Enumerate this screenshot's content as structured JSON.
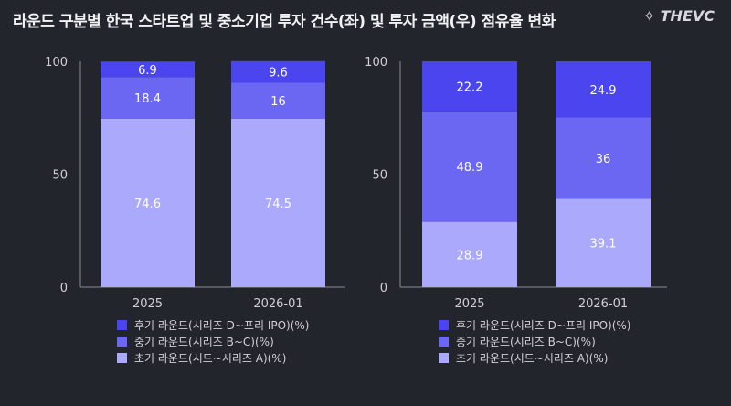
{
  "title": "라운드 구분별 한국 스타트업 및 중소기업 투자 건수(좌) 및 투자 금액(우) 점유율 변화",
  "logo": "THEVC",
  "chart_data": [
    {
      "type": "bar",
      "stacked": true,
      "categories": [
        "2025",
        "2026-01"
      ],
      "ylim": [
        0,
        100
      ],
      "yticks": [
        0,
        50,
        100
      ],
      "series": [
        {
          "name": "초기 라운드(시드~시리즈 A)(%)",
          "values": [
            74.6,
            74.5
          ],
          "color": "#aba9fb"
        },
        {
          "name": "중기 라운드(시리즈 B~C)(%)",
          "values": [
            18.4,
            16
          ],
          "color": "#6b67f3"
        },
        {
          "name": "후기 라운드(시리즈 D~프리 IPO)(%)",
          "values": [
            6.9,
            9.6
          ],
          "color": "#4a45ee"
        }
      ],
      "legend": "bottom"
    },
    {
      "type": "bar",
      "stacked": true,
      "categories": [
        "2025",
        "2026-01"
      ],
      "ylim": [
        0,
        100
      ],
      "yticks": [
        0,
        50,
        100
      ],
      "series": [
        {
          "name": "초기 라운드(시드~시리즈 A)(%)",
          "values": [
            28.9,
            39.1
          ],
          "color": "#aba9fb"
        },
        {
          "name": "중기 라운드(시리즈 B~C)(%)",
          "values": [
            48.9,
            36
          ],
          "color": "#6b67f3"
        },
        {
          "name": "후기 라운드(시리즈 D~프리 IPO)(%)",
          "values": [
            22.2,
            24.9
          ],
          "color": "#4a45ee"
        }
      ],
      "legend": "bottom"
    }
  ]
}
